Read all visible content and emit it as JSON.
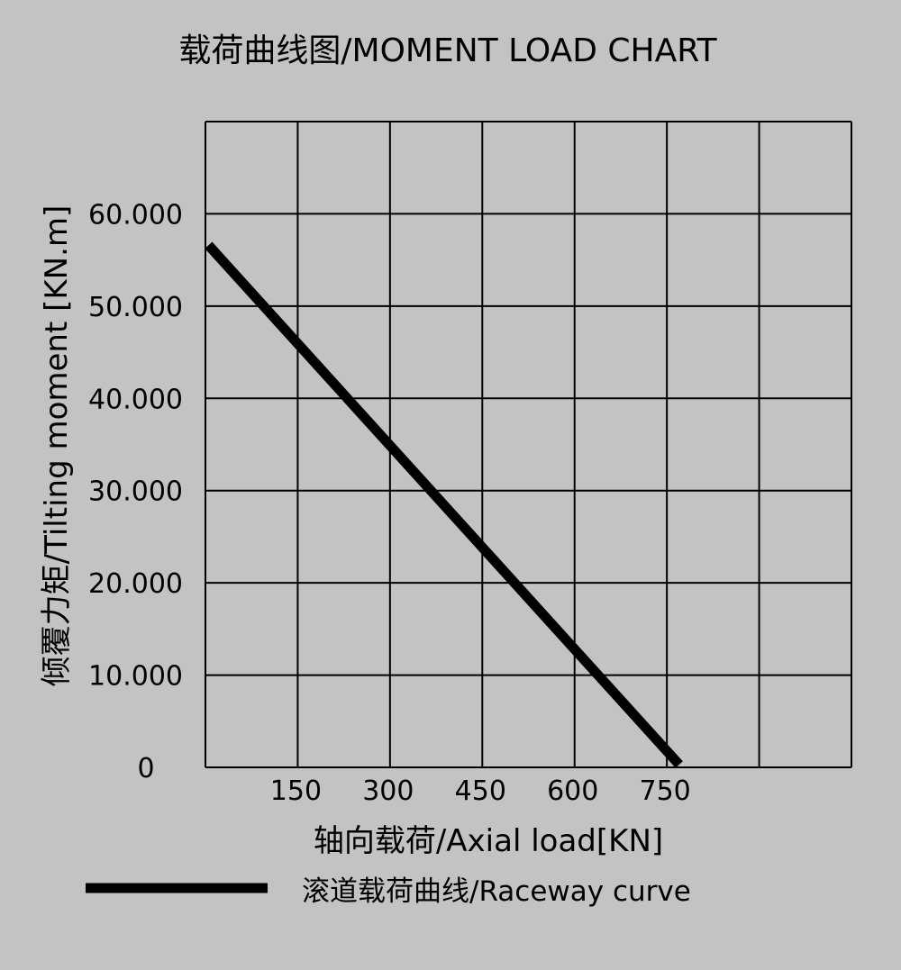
{
  "chart_data": {
    "type": "line",
    "title": "载荷曲线图/MOMENT LOAD CHART",
    "xlabel": "轴向载荷/Axial load[KN]",
    "ylabel": "倾覆力矩/Tilting moment [KN.m]",
    "xlim": [
      0,
      1050
    ],
    "ylim": [
      0,
      70
    ],
    "x_ticks": [
      150,
      300,
      450,
      600,
      750
    ],
    "x_tick_labels": [
      "150",
      "300",
      "450",
      "600",
      "750"
    ],
    "y_ticks": [
      0,
      10,
      20,
      30,
      40,
      50,
      60
    ],
    "y_tick_labels": [
      "0",
      "10.000",
      "20.000",
      "30.000",
      "40.000",
      "50.000",
      "60.000"
    ],
    "grid": true,
    "legend_position": "bottom",
    "series": [
      {
        "name": "滚道载荷曲线/Raceway curve",
        "color": "#000000",
        "x": [
          5,
          770
        ],
        "y": [
          56.6,
          0.3
        ]
      }
    ]
  }
}
